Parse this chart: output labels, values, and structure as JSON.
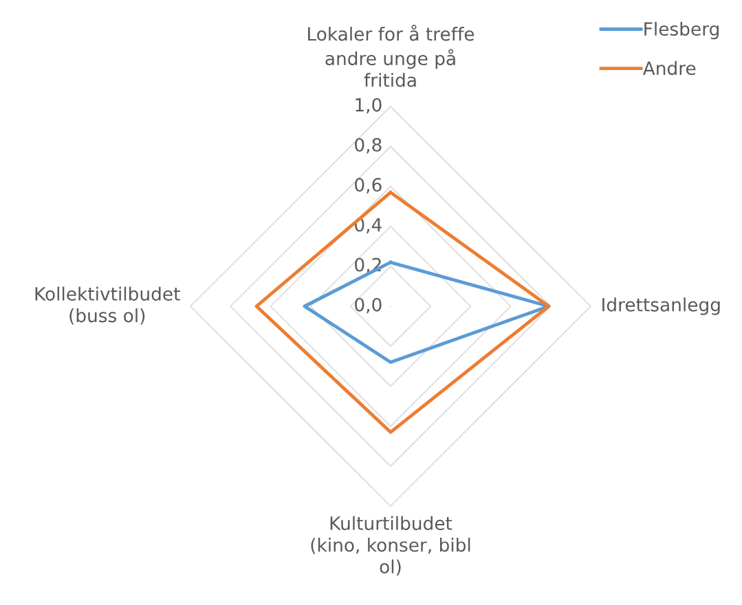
{
  "chart_data": {
    "type": "radar",
    "categories": [
      "Lokaler for å treffe\nandre unge på\nfritida",
      "Idrettsanlegg",
      "Kulturtilbudet\n(kino, konser, bibl\nol)",
      "Kollektivtilbudet\n(buss ol)"
    ],
    "series": [
      {
        "name": "Flesberg",
        "color": "#5b9bd5",
        "values": [
          0.22,
          0.79,
          0.28,
          0.43
        ]
      },
      {
        "name": "Andre",
        "color": "#ed7d31",
        "values": [
          0.57,
          0.79,
          0.63,
          0.67
        ]
      }
    ],
    "ylim": [
      0,
      1
    ],
    "yticks": [
      {
        "value": 0,
        "label": "0,0"
      },
      {
        "value": 0.2,
        "label": "0,2"
      },
      {
        "value": 0.4,
        "label": "0,4"
      },
      {
        "value": 0.6,
        "label": "0,6"
      },
      {
        "value": 0.8,
        "label": "0,8"
      },
      {
        "value": 1,
        "label": "1,0"
      }
    ],
    "grid": true,
    "legend": "top right"
  }
}
